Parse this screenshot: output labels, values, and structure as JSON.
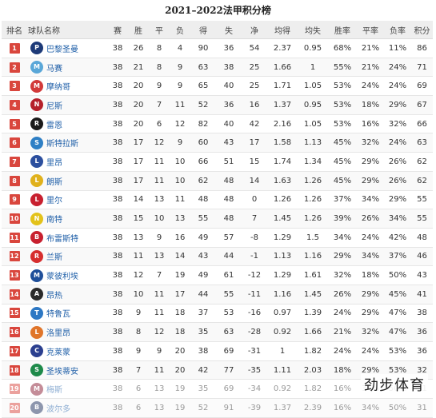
{
  "title": "2021–2022法甲积分榜",
  "headers": {
    "rank": "排名",
    "team": "球队名称",
    "played": "赛",
    "wins": "胜",
    "draws": "平",
    "losses": "负",
    "gf": "得",
    "ga": "失",
    "gd": "净",
    "avg_gf": "均得",
    "avg_ga": "均失",
    "win_rate": "胜率",
    "draw_rate": "平率",
    "loss_rate": "负率",
    "points": "积分"
  },
  "rows": [
    {
      "rank": "1",
      "team": "巴黎圣曼",
      "played": "38",
      "wins": "26",
      "draws": "8",
      "losses": "4",
      "gf": "90",
      "ga": "36",
      "gd": "54",
      "avg_gf": "2.37",
      "avg_ga": "0.95",
      "win_rate": "68%",
      "draw_rate": "21%",
      "loss_rate": "11%",
      "points": "86",
      "badge_color": "#d9463d",
      "logo_color": "#1d3a78",
      "logo_text": "P"
    },
    {
      "rank": "2",
      "team": "马赛",
      "played": "38",
      "wins": "21",
      "draws": "8",
      "losses": "9",
      "gf": "63",
      "ga": "38",
      "gd": "25",
      "avg_gf": "1.66",
      "avg_ga": "1",
      "win_rate": "55%",
      "draw_rate": "21%",
      "loss_rate": "24%",
      "points": "71",
      "badge_color": "#d9463d",
      "logo_color": "#5aa7d8",
      "logo_text": "M"
    },
    {
      "rank": "3",
      "team": "摩纳哥",
      "played": "38",
      "wins": "20",
      "draws": "9",
      "losses": "9",
      "gf": "65",
      "ga": "40",
      "gd": "25",
      "avg_gf": "1.71",
      "avg_ga": "1.05",
      "win_rate": "53%",
      "draw_rate": "24%",
      "loss_rate": "24%",
      "points": "69",
      "badge_color": "#d9463d",
      "logo_color": "#d23a3a",
      "logo_text": "M"
    },
    {
      "rank": "4",
      "team": "尼斯",
      "played": "38",
      "wins": "20",
      "draws": "7",
      "losses": "11",
      "gf": "52",
      "ga": "36",
      "gd": "16",
      "avg_gf": "1.37",
      "avg_ga": "0.95",
      "win_rate": "53%",
      "draw_rate": "18%",
      "loss_rate": "29%",
      "points": "67",
      "badge_color": "#d9463d",
      "logo_color": "#b5202a",
      "logo_text": "N"
    },
    {
      "rank": "5",
      "team": "雷恩",
      "played": "38",
      "wins": "20",
      "draws": "6",
      "losses": "12",
      "gf": "82",
      "ga": "40",
      "gd": "42",
      "avg_gf": "2.16",
      "avg_ga": "1.05",
      "win_rate": "53%",
      "draw_rate": "16%",
      "loss_rate": "32%",
      "points": "66",
      "badge_color": "#d9463d",
      "logo_color": "#1a1a1a",
      "logo_text": "R"
    },
    {
      "rank": "6",
      "team": "斯特拉斯",
      "played": "38",
      "wins": "17",
      "draws": "12",
      "losses": "9",
      "gf": "60",
      "ga": "43",
      "gd": "17",
      "avg_gf": "1.58",
      "avg_ga": "1.13",
      "win_rate": "45%",
      "draw_rate": "32%",
      "loss_rate": "24%",
      "points": "63",
      "badge_color": "#d9463d",
      "logo_color": "#2e7fc5",
      "logo_text": "S"
    },
    {
      "rank": "7",
      "team": "里昂",
      "played": "38",
      "wins": "17",
      "draws": "11",
      "losses": "10",
      "gf": "66",
      "ga": "51",
      "gd": "15",
      "avg_gf": "1.74",
      "avg_ga": "1.34",
      "win_rate": "45%",
      "draw_rate": "29%",
      "loss_rate": "26%",
      "points": "62",
      "badge_color": "#d9463d",
      "logo_color": "#2c4f9e",
      "logo_text": "L"
    },
    {
      "rank": "8",
      "team": "朗斯",
      "played": "38",
      "wins": "17",
      "draws": "11",
      "losses": "10",
      "gf": "62",
      "ga": "48",
      "gd": "14",
      "avg_gf": "1.63",
      "avg_ga": "1.26",
      "win_rate": "45%",
      "draw_rate": "29%",
      "loss_rate": "26%",
      "points": "62",
      "badge_color": "#d9463d",
      "logo_color": "#e0b11c",
      "logo_text": "L"
    },
    {
      "rank": "9",
      "team": "里尔",
      "played": "38",
      "wins": "14",
      "draws": "13",
      "losses": "11",
      "gf": "48",
      "ga": "48",
      "gd": "0",
      "avg_gf": "1.26",
      "avg_ga": "1.26",
      "win_rate": "37%",
      "draw_rate": "34%",
      "loss_rate": "29%",
      "points": "55",
      "badge_color": "#d9463d",
      "logo_color": "#c8202f",
      "logo_text": "L"
    },
    {
      "rank": "10",
      "team": "南特",
      "played": "38",
      "wins": "15",
      "draws": "10",
      "losses": "13",
      "gf": "55",
      "ga": "48",
      "gd": "7",
      "avg_gf": "1.45",
      "avg_ga": "1.26",
      "win_rate": "39%",
      "draw_rate": "26%",
      "loss_rate": "34%",
      "points": "55",
      "badge_color": "#d9463d",
      "logo_color": "#e3c21a",
      "logo_text": "N"
    },
    {
      "rank": "11",
      "team": "布雷斯特",
      "played": "38",
      "wins": "13",
      "draws": "9",
      "losses": "16",
      "gf": "49",
      "ga": "57",
      "gd": "-8",
      "avg_gf": "1.29",
      "avg_ga": "1.5",
      "win_rate": "34%",
      "draw_rate": "24%",
      "loss_rate": "42%",
      "points": "48",
      "badge_color": "#d9463d",
      "logo_color": "#c8202f",
      "logo_text": "B"
    },
    {
      "rank": "12",
      "team": "兰斯",
      "played": "38",
      "wins": "11",
      "draws": "13",
      "losses": "14",
      "gf": "43",
      "ga": "44",
      "gd": "-1",
      "avg_gf": "1.13",
      "avg_ga": "1.16",
      "win_rate": "29%",
      "draw_rate": "34%",
      "loss_rate": "37%",
      "points": "46",
      "badge_color": "#d9463d",
      "logo_color": "#d62e2e",
      "logo_text": "R"
    },
    {
      "rank": "13",
      "team": "蒙彼利埃",
      "played": "38",
      "wins": "12",
      "draws": "7",
      "losses": "19",
      "gf": "49",
      "ga": "61",
      "gd": "-12",
      "avg_gf": "1.29",
      "avg_ga": "1.61",
      "win_rate": "32%",
      "draw_rate": "18%",
      "loss_rate": "50%",
      "points": "43",
      "badge_color": "#d9463d",
      "logo_color": "#1f4f9a",
      "logo_text": "M"
    },
    {
      "rank": "14",
      "team": "昂热",
      "played": "38",
      "wins": "10",
      "draws": "11",
      "losses": "17",
      "gf": "44",
      "ga": "55",
      "gd": "-11",
      "avg_gf": "1.16",
      "avg_ga": "1.45",
      "win_rate": "26%",
      "draw_rate": "29%",
      "loss_rate": "45%",
      "points": "41",
      "badge_color": "#d9463d",
      "logo_color": "#2a2a2a",
      "logo_text": "A"
    },
    {
      "rank": "15",
      "team": "特鲁瓦",
      "played": "38",
      "wins": "9",
      "draws": "11",
      "losses": "18",
      "gf": "37",
      "ga": "53",
      "gd": "-16",
      "avg_gf": "0.97",
      "avg_ga": "1.39",
      "win_rate": "24%",
      "draw_rate": "29%",
      "loss_rate": "47%",
      "points": "38",
      "badge_color": "#d9463d",
      "logo_color": "#2d78c4",
      "logo_text": "T"
    },
    {
      "rank": "16",
      "team": "洛里昂",
      "played": "38",
      "wins": "8",
      "draws": "12",
      "losses": "18",
      "gf": "35",
      "ga": "63",
      "gd": "-28",
      "avg_gf": "0.92",
      "avg_ga": "1.66",
      "win_rate": "21%",
      "draw_rate": "32%",
      "loss_rate": "47%",
      "points": "36",
      "badge_color": "#d9463d",
      "logo_color": "#e0752a",
      "logo_text": "L"
    },
    {
      "rank": "17",
      "team": "克莱蒙",
      "played": "38",
      "wins": "9",
      "draws": "9",
      "losses": "20",
      "gf": "38",
      "ga": "69",
      "gd": "-31",
      "avg_gf": "1",
      "avg_ga": "1.82",
      "win_rate": "24%",
      "draw_rate": "24%",
      "loss_rate": "53%",
      "points": "36",
      "badge_color": "#d9463d",
      "logo_color": "#2b3f8f",
      "logo_text": "C"
    },
    {
      "rank": "18",
      "team": "圣埃蒂安",
      "played": "38",
      "wins": "7",
      "draws": "11",
      "losses": "20",
      "gf": "42",
      "ga": "77",
      "gd": "-35",
      "avg_gf": "1.11",
      "avg_ga": "2.03",
      "win_rate": "18%",
      "draw_rate": "29%",
      "loss_rate": "53%",
      "points": "32",
      "badge_color": "#d9463d",
      "logo_color": "#1e8a4a",
      "logo_text": "S"
    },
    {
      "rank": "19",
      "team": "梅斯",
      "played": "38",
      "wins": "6",
      "draws": "13",
      "losses": "19",
      "gf": "35",
      "ga": "69",
      "gd": "-34",
      "avg_gf": "0.92",
      "avg_ga": "1.82",
      "win_rate": "16%",
      "draw_rate": "34%",
      "loss_rate": "50%",
      "points": "31",
      "badge_color": "#d9463d",
      "logo_color": "#8a1c33",
      "logo_text": "M"
    },
    {
      "rank": "20",
      "team": "波尔多",
      "played": "38",
      "wins": "6",
      "draws": "13",
      "losses": "19",
      "gf": "52",
      "ga": "91",
      "gd": "-39",
      "avg_gf": "1.37",
      "avg_ga": "2.39",
      "win_rate": "16%",
      "draw_rate": "34%",
      "loss_rate": "50%",
      "points": "31",
      "badge_color": "#d9463d",
      "logo_color": "#1d2f5e",
      "logo_text": "B"
    }
  ],
  "watermark": "劲步体育"
}
